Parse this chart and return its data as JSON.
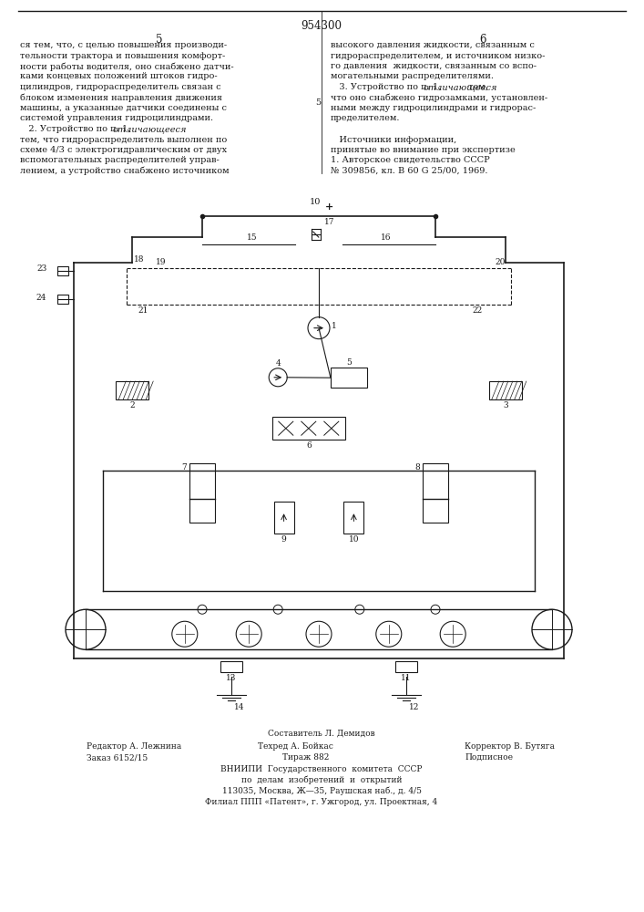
{
  "patent_number": "954300",
  "col_left_num": "5",
  "col_right_num": "6",
  "text_left": [
    "ся тем, что, с целью повышения производи-",
    "тельности трактора и повышения комфорт-",
    "ности работы водителя, оно снабжено датчи-",
    "ками концевых положений штоков гидро-",
    "цилиндров, гидрораспределитель связан с",
    "блоком изменения направления движения",
    "машины, а указанные датчики соединены с",
    "системой управления гидроцилиндрами.",
    "   2. Устройство по п. 1, отличающееся",
    "тем, что гидрораспределитель выполнен по",
    "схеме 4/3 с электрогидравлическим от двух",
    "вспомогательных распределителей управ-",
    "лением, а устройство снабжено источником"
  ],
  "text_right": [
    "высокого давления жидкости, связанным с",
    "гидрораспределителем, и источником низко-",
    "го давления  жидкости, связанным со вспо-",
    "могательными распределителями.",
    "   3. Устройство по п. 1, отличающееся тем,",
    "что оно снабжено гидрозамками, установлен-",
    "ными между гидроцилиндрами и гидрорас-",
    "пределителем.",
    "",
    "   Источники информации,",
    "принятые во внимание при экспертизе",
    "1. Авторское свидетельство СССР",
    "№ 309856, кл. В 60 G 25/00, 1969."
  ],
  "bottom_texts": [
    "Составитель Л. Демидов",
    "Редактор А. Лежнина",
    "Техред А. Бойкас",
    "Корректор В. Бутяга",
    "Заказ 6152/15",
    "Тираж 882",
    "Подписное",
    "ВНИИПИ  Государственного  комитета  СССР",
    "по  делам  изобретений  и  открытий",
    "113035, Москва, Ж—55, Раушская наб., д. 4/5",
    "Филиал ППП «Патент», г. Ужгород, ул. Проектная, 4"
  ],
  "bg_color": "#ffffff",
  "text_color": "#1a1a1a",
  "line_color": "#1a1a1a"
}
